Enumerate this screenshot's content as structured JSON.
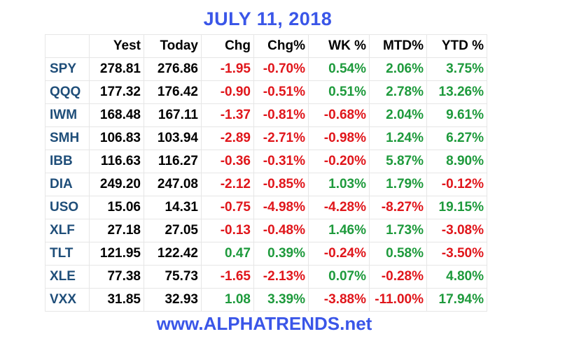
{
  "title": "JULY 11, 2018",
  "footer": "www.ALPHATRENDS.net",
  "colors": {
    "positive": "#1e9a3c",
    "negative": "#e0161b",
    "ticker": "#1f4e79",
    "title": "#3a56e8"
  },
  "columns": [
    "",
    "Yest",
    "Today",
    "Chg",
    "Chg%",
    "WK %",
    "MTD%",
    "YTD %"
  ],
  "rows": [
    [
      "SPY",
      "278.81",
      "276.86",
      "-1.95",
      "-0.70%",
      "0.54%",
      "2.06%",
      "3.75%"
    ],
    [
      "QQQ",
      "177.32",
      "176.42",
      "-0.90",
      "-0.51%",
      "0.51%",
      "2.78%",
      "13.26%"
    ],
    [
      "IWM",
      "168.48",
      "167.11",
      "-1.37",
      "-0.81%",
      "-0.68%",
      "2.04%",
      "9.61%"
    ],
    [
      "SMH",
      "106.83",
      "103.94",
      "-2.89",
      "-2.71%",
      "-0.98%",
      "1.24%",
      "6.27%"
    ],
    [
      "IBB",
      "116.63",
      "116.27",
      "-0.36",
      "-0.31%",
      "-0.20%",
      "5.87%",
      "8.90%"
    ],
    [
      "DIA",
      "249.20",
      "247.08",
      "-2.12",
      "-0.85%",
      "1.03%",
      "1.79%",
      "-0.12%"
    ],
    [
      "USO",
      "15.06",
      "14.31",
      "-0.75",
      "-4.98%",
      "-4.28%",
      "-8.27%",
      "19.15%"
    ],
    [
      "XLF",
      "27.18",
      "27.05",
      "-0.13",
      "-0.48%",
      "1.46%",
      "1.73%",
      "-3.08%"
    ],
    [
      "TLT",
      "121.95",
      "122.42",
      "0.47",
      "0.39%",
      "-0.24%",
      "0.58%",
      "-3.50%"
    ],
    [
      "XLE",
      "77.38",
      "75.73",
      "-1.65",
      "-2.13%",
      "0.07%",
      "-0.28%",
      "4.80%"
    ],
    [
      "VXX",
      "31.85",
      "32.93",
      "1.08",
      "3.39%",
      "-3.88%",
      "-11.00%",
      "17.94%"
    ]
  ]
}
